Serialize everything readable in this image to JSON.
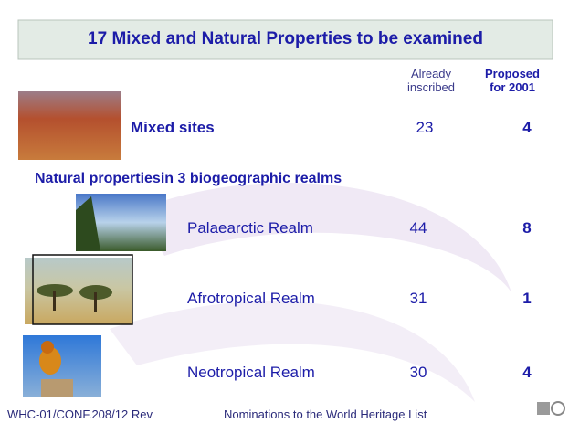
{
  "title": "17 Mixed and Natural Properties to be examined",
  "columns": {
    "already": "Already inscribed",
    "proposed": "Proposed for 2001"
  },
  "mixed": {
    "label": "Mixed sites",
    "already": 23,
    "proposed": 4
  },
  "section": "Natural propertiesin 3 biogeographic realms",
  "realms": [
    {
      "label": "Palaearctic Realm",
      "already": 44,
      "proposed": 8
    },
    {
      "label": "Afrotropical Realm",
      "already": 31,
      "proposed": 1
    },
    {
      "label": "Neotropical Realm",
      "already": 30,
      "proposed": 4
    }
  ],
  "footer": {
    "code": "WHC-01/CONF.208/12 Rev",
    "text": "Nominations to the World Heritage List"
  }
}
